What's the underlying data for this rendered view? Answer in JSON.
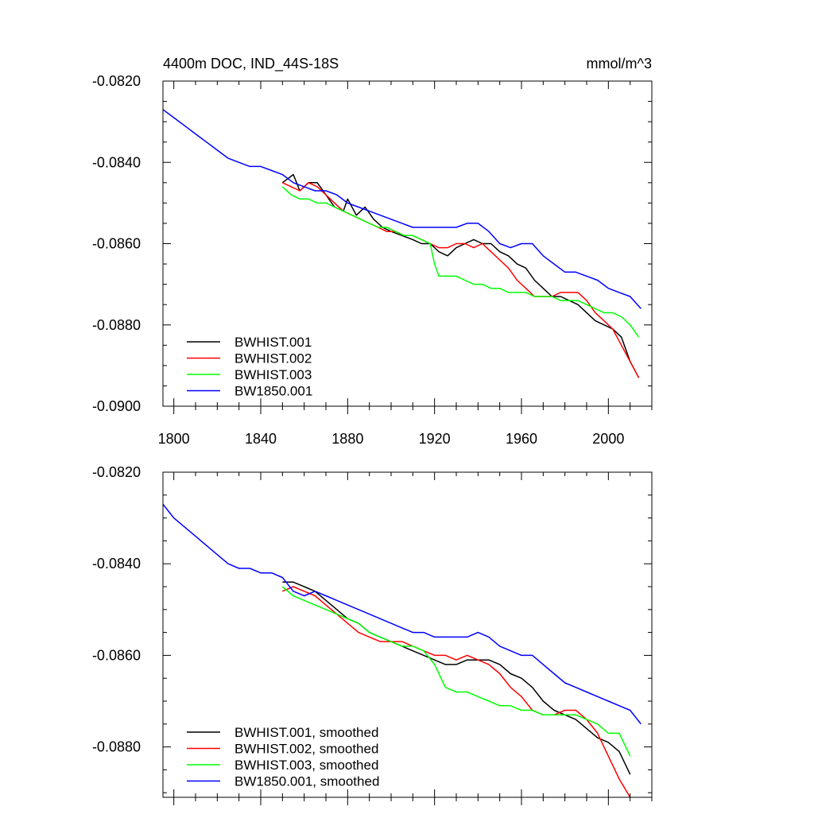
{
  "chart_data": [
    {
      "type": "line",
      "title": "4400m DOC, IND_44S-18S",
      "units": "mmol/m^3",
      "xlabel": "",
      "ylabel": "",
      "xlim": [
        1795,
        2020
      ],
      "ylim": [
        -0.09,
        -0.082
      ],
      "y_ticks": [
        "-0.0820",
        "-0.0840",
        "-0.0860",
        "-0.0880",
        "-0.0900"
      ],
      "x_ticks": [
        "1800",
        "1840",
        "1880",
        "1920",
        "1960",
        "2000"
      ],
      "grid": false,
      "legend_position": "bottom-left",
      "series": [
        {
          "name": "BWHIST.001",
          "color": "#000000",
          "x": [
            1850,
            1855,
            1858,
            1862,
            1866,
            1870,
            1874,
            1878,
            1880,
            1884,
            1888,
            1892,
            1896,
            1900,
            1905,
            1910,
            1914,
            1918,
            1922,
            1926,
            1930,
            1934,
            1938,
            1942,
            1946,
            1950,
            1954,
            1958,
            1962,
            1966,
            1970,
            1974,
            1978,
            1982,
            1986,
            1990,
            1994,
            1998,
            2002,
            2006,
            2010,
            2014
          ],
          "y": [
            -0.0845,
            -0.0843,
            -0.0847,
            -0.0845,
            -0.0845,
            -0.0848,
            -0.0851,
            -0.0852,
            -0.0849,
            -0.0853,
            -0.0851,
            -0.0854,
            -0.0856,
            -0.0857,
            -0.0858,
            -0.0859,
            -0.086,
            -0.086,
            -0.0862,
            -0.0863,
            -0.0861,
            -0.086,
            -0.0859,
            -0.086,
            -0.086,
            -0.0862,
            -0.0863,
            -0.0865,
            -0.0866,
            -0.0869,
            -0.0871,
            -0.0873,
            -0.0873,
            -0.0874,
            -0.0875,
            -0.0877,
            -0.0879,
            -0.088,
            -0.0881,
            -0.0883,
            -0.0889,
            -0.0893
          ]
        },
        {
          "name": "BWHIST.002",
          "color": "#ff0000",
          "x": [
            1850,
            1854,
            1858,
            1862,
            1866,
            1870,
            1874,
            1878,
            1882,
            1886,
            1890,
            1894,
            1898,
            1902,
            1906,
            1910,
            1914,
            1918,
            1922,
            1926,
            1930,
            1934,
            1938,
            1942,
            1946,
            1950,
            1954,
            1958,
            1962,
            1966,
            1970,
            1974,
            1978,
            1982,
            1986,
            1990,
            1994,
            1998,
            2002,
            2006,
            2010,
            2014
          ],
          "y": [
            -0.0845,
            -0.0846,
            -0.0847,
            -0.0845,
            -0.0846,
            -0.0848,
            -0.085,
            -0.0852,
            -0.0853,
            -0.0854,
            -0.0855,
            -0.0856,
            -0.0857,
            -0.0857,
            -0.0858,
            -0.0858,
            -0.0859,
            -0.086,
            -0.0861,
            -0.0861,
            -0.086,
            -0.086,
            -0.0861,
            -0.086,
            -0.0862,
            -0.0864,
            -0.0866,
            -0.0869,
            -0.0871,
            -0.0873,
            -0.0873,
            -0.0873,
            -0.0872,
            -0.0872,
            -0.0872,
            -0.0874,
            -0.0877,
            -0.0879,
            -0.0881,
            -0.0885,
            -0.0889,
            -0.0893
          ]
        },
        {
          "name": "BWHIST.003",
          "color": "#00ff00",
          "x": [
            1850,
            1854,
            1858,
            1862,
            1866,
            1870,
            1874,
            1878,
            1882,
            1886,
            1890,
            1894,
            1898,
            1902,
            1906,
            1910,
            1914,
            1918,
            1920,
            1922,
            1926,
            1930,
            1934,
            1938,
            1942,
            1946,
            1950,
            1954,
            1958,
            1962,
            1966,
            1970,
            1974,
            1978,
            1982,
            1986,
            1990,
            1994,
            1998,
            2002,
            2006,
            2010,
            2014
          ],
          "y": [
            -0.0846,
            -0.0848,
            -0.0849,
            -0.0849,
            -0.085,
            -0.085,
            -0.0851,
            -0.0852,
            -0.0853,
            -0.0854,
            -0.0855,
            -0.0856,
            -0.0856,
            -0.0857,
            -0.0858,
            -0.0858,
            -0.0859,
            -0.086,
            -0.0865,
            -0.0868,
            -0.0868,
            -0.0868,
            -0.0869,
            -0.087,
            -0.087,
            -0.0871,
            -0.0871,
            -0.0872,
            -0.0872,
            -0.0872,
            -0.0873,
            -0.0873,
            -0.0873,
            -0.0874,
            -0.0874,
            -0.0874,
            -0.0875,
            -0.0876,
            -0.0877,
            -0.0877,
            -0.0878,
            -0.088,
            -0.0883
          ]
        },
        {
          "name": "BW1850.001",
          "color": "#0000ff",
          "x": [
            1795,
            1800,
            1805,
            1810,
            1815,
            1820,
            1825,
            1830,
            1835,
            1840,
            1845,
            1850,
            1855,
            1860,
            1865,
            1870,
            1875,
            1880,
            1885,
            1890,
            1895,
            1900,
            1905,
            1910,
            1915,
            1920,
            1925,
            1930,
            1935,
            1940,
            1945,
            1950,
            1955,
            1960,
            1965,
            1970,
            1975,
            1980,
            1985,
            1990,
            1995,
            2000,
            2005,
            2010,
            2015
          ],
          "y": [
            -0.0827,
            -0.0829,
            -0.0831,
            -0.0833,
            -0.0835,
            -0.0837,
            -0.0839,
            -0.084,
            -0.0841,
            -0.0841,
            -0.0842,
            -0.0843,
            -0.0845,
            -0.0846,
            -0.0847,
            -0.0847,
            -0.0848,
            -0.085,
            -0.0851,
            -0.0852,
            -0.0853,
            -0.0854,
            -0.0855,
            -0.0856,
            -0.0856,
            -0.0856,
            -0.0856,
            -0.0856,
            -0.0855,
            -0.0855,
            -0.0857,
            -0.086,
            -0.0861,
            -0.086,
            -0.086,
            -0.0863,
            -0.0865,
            -0.0867,
            -0.0867,
            -0.0868,
            -0.0869,
            -0.0871,
            -0.0872,
            -0.0873,
            -0.0876
          ]
        }
      ]
    },
    {
      "type": "line",
      "title": "",
      "xlabel": "",
      "ylabel": "",
      "xlim": [
        1795,
        2020
      ],
      "ylim": [
        -0.0891,
        -0.082
      ],
      "y_ticks": [
        "-0.0820",
        "-0.0840",
        "-0.0860",
        "-0.0880"
      ],
      "grid": false,
      "legend_position": "bottom-left",
      "series": [
        {
          "name": "BWHIST.001, smoothed",
          "color": "#000000",
          "x": [
            1850,
            1855,
            1860,
            1865,
            1870,
            1875,
            1880,
            1885,
            1890,
            1895,
            1900,
            1905,
            1910,
            1915,
            1920,
            1925,
            1930,
            1935,
            1940,
            1945,
            1950,
            1955,
            1960,
            1965,
            1970,
            1975,
            1980,
            1985,
            1990,
            1995,
            2000,
            2005,
            2010
          ],
          "y": [
            -0.0844,
            -0.0844,
            -0.0845,
            -0.0846,
            -0.0848,
            -0.085,
            -0.0852,
            -0.0853,
            -0.0855,
            -0.0856,
            -0.0857,
            -0.0858,
            -0.0859,
            -0.086,
            -0.0861,
            -0.0862,
            -0.0862,
            -0.0861,
            -0.0861,
            -0.0861,
            -0.0862,
            -0.0864,
            -0.0865,
            -0.0867,
            -0.087,
            -0.0872,
            -0.0873,
            -0.0874,
            -0.0876,
            -0.0878,
            -0.0879,
            -0.0881,
            -0.0886
          ]
        },
        {
          "name": "BWHIST.002, smoothed",
          "color": "#ff0000",
          "x": [
            1850,
            1855,
            1860,
            1865,
            1870,
            1875,
            1880,
            1885,
            1890,
            1895,
            1900,
            1905,
            1910,
            1915,
            1920,
            1925,
            1930,
            1935,
            1940,
            1945,
            1950,
            1955,
            1960,
            1965,
            1970,
            1975,
            1980,
            1985,
            1990,
            1995,
            2000,
            2005,
            2010
          ],
          "y": [
            -0.0846,
            -0.0845,
            -0.0846,
            -0.0847,
            -0.0849,
            -0.0851,
            -0.0853,
            -0.0855,
            -0.0856,
            -0.0857,
            -0.0857,
            -0.0857,
            -0.0858,
            -0.0859,
            -0.086,
            -0.086,
            -0.0861,
            -0.086,
            -0.0861,
            -0.0862,
            -0.0864,
            -0.0867,
            -0.0869,
            -0.0872,
            -0.0873,
            -0.0873,
            -0.0872,
            -0.0872,
            -0.0874,
            -0.0877,
            -0.0882,
            -0.0887,
            -0.0891
          ]
        },
        {
          "name": "BWHIST.003, smoothed",
          "color": "#00ff00",
          "x": [
            1850,
            1855,
            1860,
            1865,
            1870,
            1875,
            1880,
            1885,
            1890,
            1895,
            1900,
            1905,
            1910,
            1915,
            1920,
            1925,
            1930,
            1935,
            1940,
            1945,
            1950,
            1955,
            1960,
            1965,
            1970,
            1975,
            1980,
            1985,
            1990,
            1995,
            2000,
            2005,
            2010
          ],
          "y": [
            -0.0845,
            -0.0847,
            -0.0848,
            -0.0849,
            -0.085,
            -0.0851,
            -0.0852,
            -0.0853,
            -0.0855,
            -0.0856,
            -0.0857,
            -0.0858,
            -0.0858,
            -0.0859,
            -0.0862,
            -0.0867,
            -0.0868,
            -0.0868,
            -0.0869,
            -0.087,
            -0.0871,
            -0.0871,
            -0.0872,
            -0.0872,
            -0.0873,
            -0.0873,
            -0.0873,
            -0.0873,
            -0.0874,
            -0.0875,
            -0.0877,
            -0.0877,
            -0.0882
          ]
        },
        {
          "name": "BW1850.001, smoothed",
          "color": "#0000ff",
          "x": [
            1795,
            1800,
            1805,
            1810,
            1815,
            1820,
            1825,
            1830,
            1835,
            1840,
            1845,
            1850,
            1855,
            1860,
            1865,
            1870,
            1875,
            1880,
            1885,
            1890,
            1895,
            1900,
            1905,
            1910,
            1915,
            1920,
            1925,
            1930,
            1935,
            1940,
            1945,
            1950,
            1955,
            1960,
            1965,
            1970,
            1975,
            1980,
            1985,
            1990,
            1995,
            2000,
            2005,
            2010,
            2015
          ],
          "y": [
            -0.0827,
            -0.083,
            -0.0832,
            -0.0834,
            -0.0836,
            -0.0838,
            -0.084,
            -0.0841,
            -0.0841,
            -0.0842,
            -0.0842,
            -0.0843,
            -0.0846,
            -0.0847,
            -0.0846,
            -0.0847,
            -0.0848,
            -0.0849,
            -0.085,
            -0.0851,
            -0.0852,
            -0.0853,
            -0.0854,
            -0.0855,
            -0.0855,
            -0.0856,
            -0.0856,
            -0.0856,
            -0.0856,
            -0.0855,
            -0.0856,
            -0.0858,
            -0.0859,
            -0.086,
            -0.086,
            -0.0862,
            -0.0864,
            -0.0866,
            -0.0867,
            -0.0868,
            -0.0869,
            -0.087,
            -0.0871,
            -0.0872,
            -0.0875
          ]
        }
      ]
    }
  ]
}
